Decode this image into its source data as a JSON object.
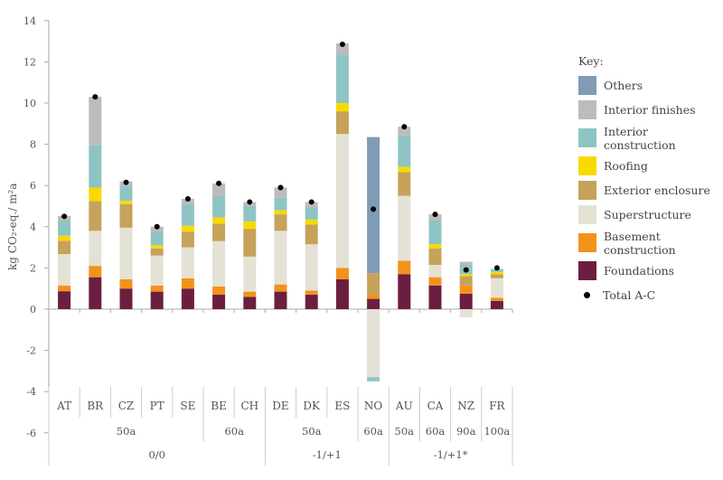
{
  "chart_data": {
    "type": "bar",
    "stacked": true,
    "ylabel": "kg CO₂-eq./ m²a",
    "ylim": [
      -6,
      14
    ],
    "yticks": [
      -6,
      -4,
      -2,
      0,
      2,
      4,
      6,
      8,
      10,
      12,
      14
    ],
    "categories": [
      "AT",
      "BR",
      "CZ",
      "PT",
      "SE",
      "BE",
      "CH",
      "DE",
      "DK",
      "ES",
      "NO",
      "AU",
      "CA",
      "NZ",
      "FR"
    ],
    "periods": [
      {
        "label": "50a",
        "span": 5
      },
      {
        "label": "60a",
        "span": 2
      },
      {
        "label": "50a",
        "span": 3
      },
      {
        "label": "60a",
        "span": 1
      },
      {
        "label": "50a",
        "span": 1
      },
      {
        "label": "60a",
        "span": 1
      },
      {
        "label": "90a",
        "span": 1
      },
      {
        "label": "100a",
        "span": 1
      }
    ],
    "groups": [
      {
        "label": "0/0",
        "span": 7
      },
      {
        "label": "-1/+1",
        "span": 4
      },
      {
        "label": "-1/+1*",
        "span": 4
      }
    ],
    "legend_title": "Key:",
    "series": [
      {
        "name": "Foundations",
        "color": "#6b1f40",
        "values": [
          0.87,
          1.55,
          1.0,
          0.85,
          1.0,
          0.7,
          0.6,
          0.85,
          0.7,
          1.45,
          0.5,
          1.7,
          1.15,
          0.75,
          0.4
        ]
      },
      {
        "name": "Basement construction",
        "color": "#f3921a",
        "values": [
          0.27,
          0.55,
          0.45,
          0.3,
          0.5,
          0.4,
          0.25,
          0.35,
          0.2,
          0.55,
          0.2,
          0.65,
          0.4,
          0.4,
          0.15
        ]
      },
      {
        "name": "Superstructure",
        "color": "#e4e2d5",
        "values": [
          1.53,
          1.7,
          2.5,
          1.45,
          1.5,
          2.2,
          1.7,
          2.6,
          2.25,
          6.5,
          -3.3,
          3.15,
          0.6,
          -0.4,
          0.95
        ]
      },
      {
        "name": "Exterior enclosure",
        "color": "#c6a25b",
        "values": [
          0.65,
          1.45,
          1.15,
          0.35,
          0.75,
          0.85,
          1.35,
          0.8,
          0.95,
          1.1,
          1.05,
          1.15,
          0.8,
          0.45,
          0.2
        ]
      },
      {
        "name": "Roofing",
        "color": "#f8da00",
        "values": [
          0.24,
          0.65,
          0.15,
          0.15,
          0.3,
          0.3,
          0.35,
          0.2,
          0.25,
          0.4,
          0,
          0.25,
          0.2,
          0.1,
          0.1
        ]
      },
      {
        "name": "Interior construction",
        "color": "#8fc4c5",
        "values": [
          0.74,
          2.05,
          0.75,
          0.65,
          1.05,
          1.05,
          0.75,
          0.6,
          0.6,
          2.35,
          -0.2,
          1.55,
          1.15,
          0.45,
          0.15
        ]
      },
      {
        "name": "Interior finishes",
        "color": "#bdbbbc",
        "values": [
          0.22,
          2.35,
          0.2,
          0.25,
          0.25,
          0.6,
          0.2,
          0.5,
          0.25,
          0.55,
          0,
          0.4,
          0.3,
          0.15,
          0
        ]
      },
      {
        "name": "Others",
        "color": "#7f9bb6",
        "values": [
          0,
          0,
          0,
          0,
          0,
          0,
          0,
          0,
          0,
          0,
          6.6,
          0,
          0,
          0,
          0
        ]
      }
    ],
    "total": {
      "name": "Total A-C",
      "values": [
        4.5,
        10.3,
        6.15,
        4.0,
        5.35,
        6.1,
        5.2,
        5.9,
        5.2,
        12.85,
        4.85,
        8.85,
        4.6,
        1.9,
        2.0
      ]
    },
    "legend_order": [
      "Others",
      "Interior finishes",
      "Interior construction",
      "Roofing",
      "Exterior enclosure",
      "Superstructure",
      "Basement construction",
      "Foundations"
    ],
    "grid": false,
    "legend_position": "right"
  }
}
